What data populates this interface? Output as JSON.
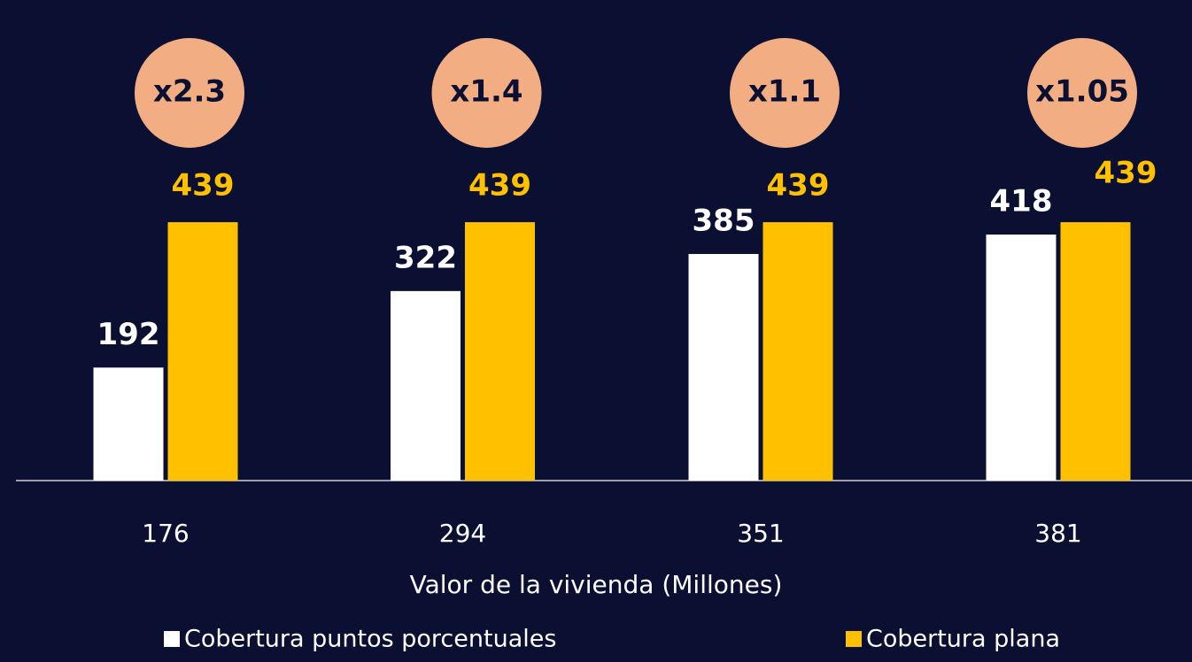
{
  "chart_data": {
    "type": "bar",
    "categories": [
      "176",
      "294",
      "351",
      "381"
    ],
    "series": [
      {
        "name": "Cobertura puntos porcentuales",
        "color": "#ffffff",
        "values": [
          192,
          322,
          385,
          418
        ]
      },
      {
        "name": "Cobertura plana",
        "color": "#ffc000",
        "values": [
          439,
          439,
          439,
          439
        ]
      }
    ],
    "annotations": [
      "x2.3",
      "x1.4",
      "x1.1",
      "x1.05"
    ],
    "annotation_color": "#f2ae82",
    "xlabel": "Valor de la vivienda (Millones)"
  }
}
